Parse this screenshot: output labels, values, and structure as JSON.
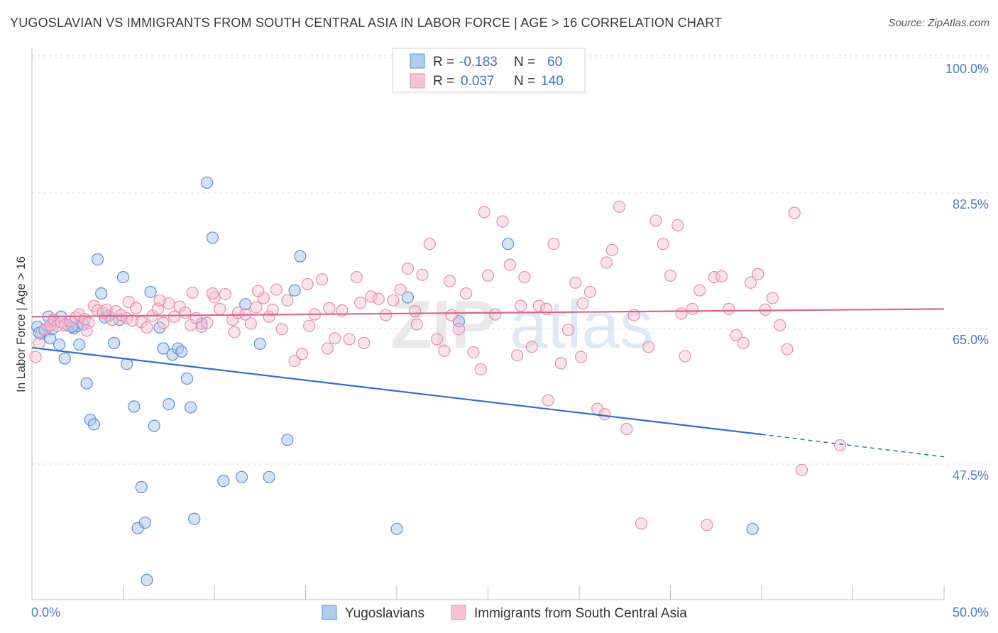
{
  "title": "YUGOSLAVIAN VS IMMIGRANTS FROM SOUTH CENTRAL ASIA IN LABOR FORCE | AGE > 16 CORRELATION CHART",
  "source": "Source: ZipAtlas.com",
  "watermark": {
    "zip": "ZIP",
    "atlas": "atlas"
  },
  "colors": {
    "blue": "#5b8fd9",
    "blue_fill": "#aecbf0",
    "blue_line": "#2a6fd6",
    "pink": "#e98aaa",
    "pink_fill": "#f6c1d3",
    "pink_line": "#e0648e",
    "grid": "#dddddd",
    "axis_text": "#4a7cc9"
  },
  "legend": {
    "rows": [
      {
        "r_label": "R =",
        "r_value": "-0.183",
        "n_label": "N =",
        "n_value": "60"
      },
      {
        "r_label": "R =",
        "r_value": "0.037",
        "n_label": "N =",
        "n_value": "140"
      }
    ]
  },
  "bottom_legend": [
    "Yugoslavians",
    "Immigrants from South Central Asia"
  ],
  "chart_data": {
    "type": "scatter",
    "xlabel": "",
    "ylabel": "In Labor Force | Age > 16",
    "xlim": [
      0,
      50
    ],
    "ylim": [
      33,
      101.5
    ],
    "x_tick_labels": [
      {
        "value": 0,
        "label": "0.0%"
      },
      {
        "value": 50,
        "label": "50.0%"
      }
    ],
    "y_ticks": [
      {
        "value": 100.0,
        "label": "100.0%"
      },
      {
        "value": 82.5,
        "label": "82.5%"
      },
      {
        "value": 65.0,
        "label": "65.0%"
      },
      {
        "value": 47.5,
        "label": "47.5%"
      }
    ],
    "grid": true,
    "series": [
      {
        "name": "Yugoslavians",
        "color": "#5b8fd9",
        "trend": {
          "x0": 0,
          "y0": 64.0,
          "x1": 40,
          "y1": 52.8,
          "x_dash_end": 50,
          "y_dash_end": 49.9
        },
        "points": [
          [
            0.3,
            66.7
          ],
          [
            0.5,
            65.8
          ],
          [
            0.7,
            66.2
          ],
          [
            0.9,
            68.0
          ],
          [
            1.0,
            65.2
          ],
          [
            1.2,
            67.6
          ],
          [
            1.5,
            64.4
          ],
          [
            1.6,
            68.0
          ],
          [
            1.8,
            62.6
          ],
          [
            2.0,
            66.9
          ],
          [
            2.3,
            66.5
          ],
          [
            2.5,
            66.8
          ],
          [
            2.6,
            64.4
          ],
          [
            2.8,
            67.0
          ],
          [
            3.0,
            59.4
          ],
          [
            3.2,
            54.7
          ],
          [
            3.4,
            54.1
          ],
          [
            3.6,
            75.4
          ],
          [
            3.8,
            71.0
          ],
          [
            4.2,
            68.1
          ],
          [
            4.5,
            64.6
          ],
          [
            4.8,
            67.6
          ],
          [
            5.0,
            73.1
          ],
          [
            5.2,
            61.9
          ],
          [
            5.6,
            56.4
          ],
          [
            5.8,
            40.7
          ],
          [
            6.0,
            46.0
          ],
          [
            6.2,
            41.4
          ],
          [
            6.5,
            71.2
          ],
          [
            6.7,
            53.9
          ],
          [
            7.0,
            66.6
          ],
          [
            7.2,
            63.9
          ],
          [
            7.5,
            56.7
          ],
          [
            7.7,
            63.1
          ],
          [
            8.0,
            63.9
          ],
          [
            8.2,
            63.5
          ],
          [
            8.5,
            60.0
          ],
          [
            8.7,
            56.3
          ],
          [
            8.9,
            41.9
          ],
          [
            9.3,
            67.1
          ],
          [
            9.6,
            85.3
          ],
          [
            9.9,
            78.2
          ],
          [
            10.5,
            46.8
          ],
          [
            11.5,
            47.3
          ],
          [
            11.7,
            69.6
          ],
          [
            12.5,
            64.5
          ],
          [
            13.0,
            47.3
          ],
          [
            14.4,
            71.4
          ],
          [
            14.7,
            75.8
          ],
          [
            14.0,
            52.1
          ],
          [
            20.0,
            40.6
          ],
          [
            20.6,
            70.5
          ],
          [
            23.4,
            67.4
          ],
          [
            26.1,
            77.4
          ],
          [
            39.5,
            40.6
          ],
          [
            6.3,
            34.0
          ],
          [
            0.4,
            65.9
          ],
          [
            2.2,
            66.7
          ],
          [
            1.1,
            66.4
          ],
          [
            4.0,
            67.9
          ]
        ]
      },
      {
        "name": "Immigrants from South Central Asia",
        "color": "#e98aaa",
        "trend": {
          "x0": 0,
          "y0": 68.0,
          "x1": 50,
          "y1": 69.0
        },
        "points": [
          [
            0.2,
            62.8
          ],
          [
            0.4,
            64.6
          ],
          [
            0.7,
            66.4
          ],
          [
            1.0,
            66.9
          ],
          [
            1.2,
            67.6
          ],
          [
            1.4,
            66.8
          ],
          [
            1.6,
            67.3
          ],
          [
            1.8,
            66.9
          ],
          [
            2.1,
            67.4
          ],
          [
            2.4,
            67.9
          ],
          [
            2.6,
            68.3
          ],
          [
            2.9,
            67.7
          ],
          [
            3.1,
            67.2
          ],
          [
            3.4,
            69.4
          ],
          [
            3.6,
            68.8
          ],
          [
            3.9,
            68.5
          ],
          [
            4.1,
            68.9
          ],
          [
            4.4,
            67.6
          ],
          [
            4.6,
            68.7
          ],
          [
            4.9,
            68.2
          ],
          [
            5.2,
            67.8
          ],
          [
            5.5,
            67.5
          ],
          [
            5.7,
            69.1
          ],
          [
            6.0,
            67.3
          ],
          [
            6.3,
            66.6
          ],
          [
            6.6,
            68.1
          ],
          [
            6.9,
            69.0
          ],
          [
            7.2,
            67.2
          ],
          [
            7.5,
            69.7
          ],
          [
            7.8,
            68.0
          ],
          [
            8.1,
            69.3
          ],
          [
            8.4,
            68.5
          ],
          [
            8.7,
            66.9
          ],
          [
            9.0,
            67.8
          ],
          [
            9.3,
            66.7
          ],
          [
            9.6,
            67.2
          ],
          [
            10.0,
            70.5
          ],
          [
            10.3,
            69.0
          ],
          [
            10.6,
            70.9
          ],
          [
            11.0,
            67.6
          ],
          [
            11.3,
            68.5
          ],
          [
            11.7,
            68.3
          ],
          [
            12.0,
            67.1
          ],
          [
            12.3,
            69.2
          ],
          [
            12.7,
            70.4
          ],
          [
            13.0,
            68.0
          ],
          [
            13.4,
            71.5
          ],
          [
            13.7,
            66.4
          ],
          [
            14.0,
            70.1
          ],
          [
            14.4,
            62.3
          ],
          [
            14.8,
            63.2
          ],
          [
            15.1,
            72.2
          ],
          [
            15.5,
            68.3
          ],
          [
            15.9,
            72.8
          ],
          [
            16.2,
            63.9
          ],
          [
            16.6,
            65.2
          ],
          [
            17.0,
            68.8
          ],
          [
            17.4,
            65.1
          ],
          [
            17.8,
            73.1
          ],
          [
            18.2,
            64.6
          ],
          [
            18.6,
            70.6
          ],
          [
            19.0,
            70.3
          ],
          [
            19.4,
            68.2
          ],
          [
            19.8,
            70.1
          ],
          [
            20.2,
            71.5
          ],
          [
            20.6,
            74.2
          ],
          [
            21.0,
            68.7
          ],
          [
            21.4,
            73.4
          ],
          [
            21.8,
            77.4
          ],
          [
            22.2,
            65.1
          ],
          [
            22.6,
            63.6
          ],
          [
            23.0,
            68.2
          ],
          [
            23.4,
            66.4
          ],
          [
            23.8,
            71.0
          ],
          [
            24.2,
            63.4
          ],
          [
            24.6,
            61.2
          ],
          [
            25.0,
            73.3
          ],
          [
            25.4,
            68.3
          ],
          [
            25.8,
            80.3
          ],
          [
            26.2,
            74.7
          ],
          [
            26.6,
            63.0
          ],
          [
            27.0,
            73.1
          ],
          [
            27.4,
            64.1
          ],
          [
            27.8,
            69.4
          ],
          [
            28.2,
            69.0
          ],
          [
            28.6,
            77.4
          ],
          [
            29.0,
            62.0
          ],
          [
            29.4,
            66.3
          ],
          [
            29.8,
            72.4
          ],
          [
            30.2,
            69.7
          ],
          [
            30.6,
            71.2
          ],
          [
            31.0,
            56.1
          ],
          [
            31.4,
            55.4
          ],
          [
            31.8,
            76.6
          ],
          [
            32.2,
            82.2
          ],
          [
            32.6,
            53.5
          ],
          [
            33.0,
            68.2
          ],
          [
            33.4,
            41.3
          ],
          [
            33.8,
            64.1
          ],
          [
            34.2,
            80.4
          ],
          [
            34.6,
            77.4
          ],
          [
            35.0,
            73.3
          ],
          [
            35.4,
            79.8
          ],
          [
            35.8,
            62.9
          ],
          [
            36.2,
            69.0
          ],
          [
            36.6,
            71.4
          ],
          [
            37.0,
            41.1
          ],
          [
            37.4,
            73.1
          ],
          [
            37.8,
            73.2
          ],
          [
            38.2,
            69.0
          ],
          [
            38.6,
            65.6
          ],
          [
            39.0,
            64.6
          ],
          [
            39.4,
            72.4
          ],
          [
            39.8,
            73.5
          ],
          [
            40.2,
            68.9
          ],
          [
            40.6,
            70.4
          ],
          [
            41.0,
            66.9
          ],
          [
            41.4,
            63.8
          ],
          [
            41.8,
            81.4
          ],
          [
            42.2,
            48.2
          ],
          [
            8.8,
            71.1
          ],
          [
            11.1,
            66.0
          ],
          [
            13.2,
            68.9
          ],
          [
            16.3,
            69.1
          ],
          [
            21.1,
            67.0
          ],
          [
            24.8,
            81.5
          ],
          [
            26.8,
            69.4
          ],
          [
            30.1,
            62.8
          ],
          [
            35.6,
            68.4
          ],
          [
            44.3,
            51.4
          ],
          [
            3.0,
            66.2
          ],
          [
            5.3,
            69.9
          ],
          [
            7.0,
            70.1
          ],
          [
            9.9,
            71.0
          ],
          [
            12.4,
            71.3
          ],
          [
            15.2,
            66.8
          ],
          [
            18.0,
            69.8
          ],
          [
            22.9,
            72.6
          ],
          [
            28.3,
            57.2
          ],
          [
            31.5,
            75.0
          ]
        ]
      }
    ]
  }
}
